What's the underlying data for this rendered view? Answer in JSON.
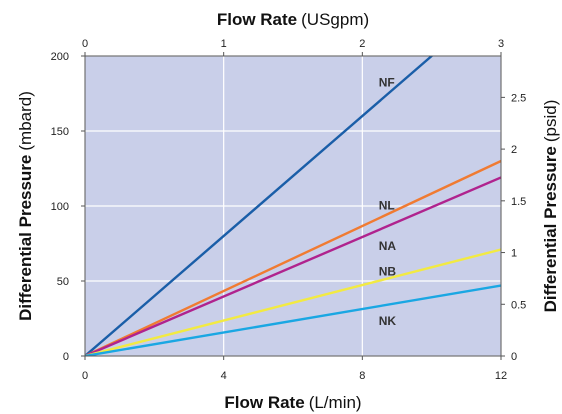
{
  "chart_data": {
    "type": "line",
    "titles": {
      "top": {
        "bold": "Flow Rate",
        "unit": "(USgpm)"
      },
      "bottom": {
        "bold": "Flow Rate",
        "unit": "(L/min)"
      },
      "left": {
        "bold": "Differential Pressure",
        "unit": "(mbard)"
      },
      "right": {
        "bold": "Differential Pressure",
        "unit": "(psid)"
      }
    },
    "x_bottom": {
      "range": [
        0,
        12
      ],
      "ticks": [
        "0",
        "4",
        "8",
        "12"
      ],
      "tick_values": [
        0,
        4,
        8,
        12
      ]
    },
    "x_top": {
      "range": [
        0,
        3
      ],
      "ticks": [
        "0",
        "1",
        "2",
        "3"
      ],
      "tick_values": [
        0,
        1,
        2,
        3
      ]
    },
    "y_left": {
      "range": [
        0,
        200
      ],
      "ticks": [
        "0",
        "50",
        "100",
        "150",
        "200"
      ],
      "tick_values": [
        0,
        50,
        100,
        150,
        200
      ]
    },
    "y_right": {
      "range": [
        0,
        2.9
      ],
      "ticks": [
        "0",
        "0.5",
        "1",
        "1.5",
        "2",
        "2.5"
      ],
      "tick_values": [
        0,
        0.5,
        1,
        1.5,
        2,
        2.5
      ]
    },
    "grid": true,
    "background": "#c9cfe9",
    "series": [
      {
        "name": "NF",
        "color": "#1a5ea8",
        "points": [
          [
            0,
            0
          ],
          [
            10,
            200
          ]
        ],
        "label_pos": [
          8.3,
          183
        ]
      },
      {
        "name": "NL",
        "color": "#f07b32",
        "points": [
          [
            0,
            0
          ],
          [
            12,
            130
          ]
        ],
        "label_pos": [
          8.3,
          101
        ]
      },
      {
        "name": "NA",
        "color": "#b0238e",
        "points": [
          [
            0,
            0
          ],
          [
            12,
            119
          ]
        ],
        "label_pos": [
          8.3,
          74
        ]
      },
      {
        "name": "NB",
        "color": "#f2ea42",
        "points": [
          [
            0,
            0
          ],
          [
            12,
            71
          ]
        ],
        "label_pos": [
          8.3,
          57
        ]
      },
      {
        "name": "NK",
        "color": "#1aa7e3",
        "points": [
          [
            0,
            0
          ],
          [
            12,
            47
          ]
        ],
        "label_pos": [
          8.3,
          24
        ]
      }
    ]
  }
}
